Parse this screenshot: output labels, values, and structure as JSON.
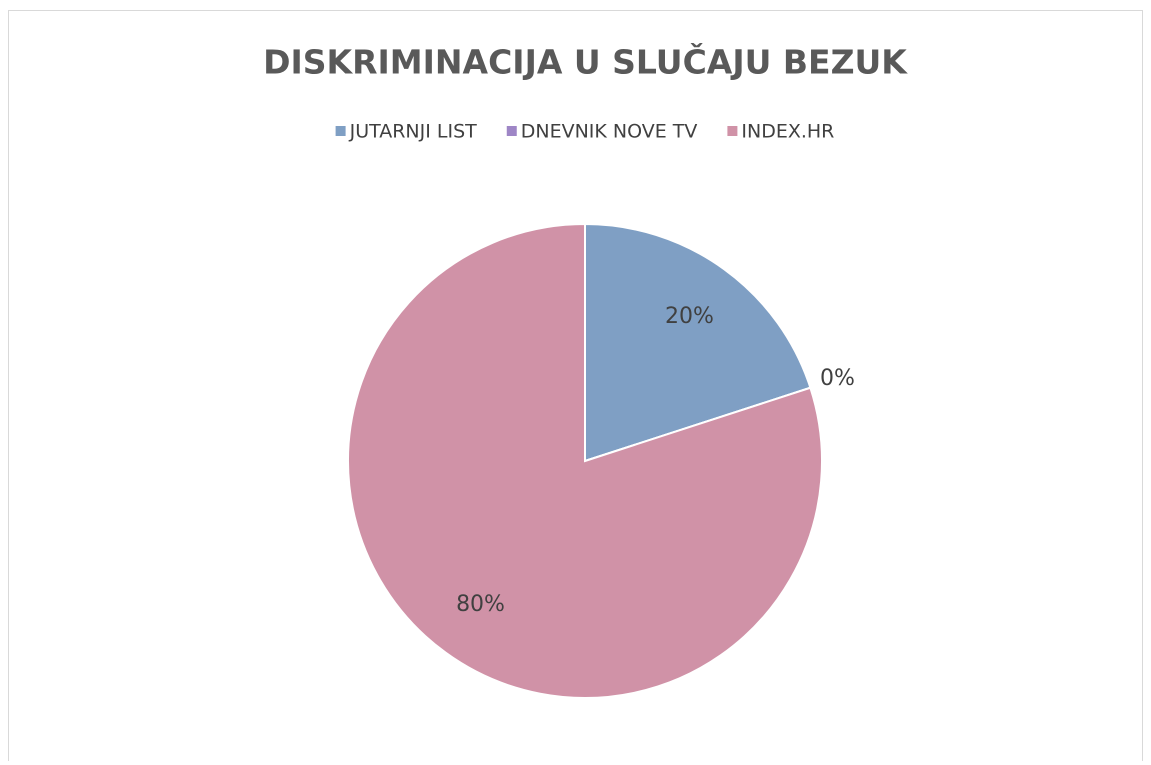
{
  "chart_data": {
    "type": "pie",
    "title": "DISKRIMINACIJA U SLUČAJU BEZUK",
    "categories": [
      "JUTARNJI LIST",
      "DNEVNIK NOVE TV",
      "INDEX.HR"
    ],
    "values": [
      20,
      0,
      80
    ],
    "value_labels": [
      "20%",
      "0%",
      "80%"
    ],
    "colors": [
      "#7f9fc4",
      "#9e86c6",
      "#d092a7"
    ],
    "legend": "top"
  }
}
